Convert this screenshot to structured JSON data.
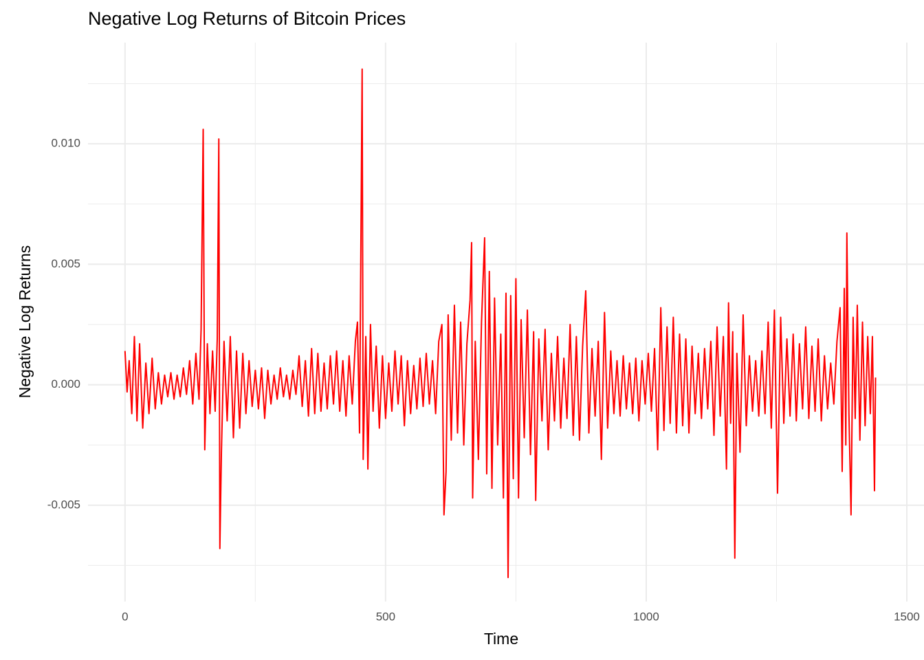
{
  "chart_data": {
    "type": "line",
    "title": "Negative Log Returns of Bitcoin Prices",
    "x_label": "Time",
    "y_label": "Negative Log Returns",
    "xlim": [
      -71,
      1533
    ],
    "ylim": [
      -0.009,
      0.0142
    ],
    "xticks": [
      0,
      500,
      1000,
      1500
    ],
    "xminorticks": [
      250,
      750,
      1250
    ],
    "yticks": [
      {
        "value": -0.005,
        "label": "-0.005"
      },
      {
        "value": 0,
        "label": "0.000"
      },
      {
        "value": 0.005,
        "label": "0.005"
      },
      {
        "value": 0.01,
        "label": "0.010"
      }
    ],
    "yminorticks": [
      -0.0075,
      -0.0025,
      0.0025,
      0.0075,
      0.0125
    ],
    "grid": true,
    "series": [
      {
        "name": "Negative Log Returns",
        "color": "#ff0000",
        "x": [
          0,
          4,
          8,
          13,
          18,
          23,
          28,
          34,
          40,
          46,
          52,
          58,
          64,
          70,
          76,
          82,
          88,
          94,
          100,
          106,
          112,
          118,
          124,
          130,
          136,
          142,
          146,
          150,
          153,
          158,
          163,
          168,
          173,
          177,
          180,
          182,
          185,
          190,
          196,
          202,
          208,
          214,
          220,
          226,
          232,
          238,
          244,
          250,
          256,
          262,
          268,
          274,
          280,
          286,
          292,
          298,
          304,
          310,
          316,
          322,
          328,
          334,
          340,
          346,
          352,
          358,
          364,
          370,
          376,
          382,
          388,
          394,
          400,
          406,
          412,
          418,
          424,
          430,
          436,
          442,
          446,
          450,
          455,
          457,
          462,
          466,
          471,
          476,
          482,
          488,
          494,
          500,
          506,
          512,
          518,
          524,
          530,
          536,
          542,
          548,
          554,
          560,
          566,
          572,
          578,
          584,
          590,
          596,
          602,
          608,
          612,
          616,
          620,
          626,
          632,
          638,
          644,
          650,
          656,
          662,
          665,
          667,
          672,
          678,
          684,
          690,
          694,
          699,
          704,
          709,
          715,
          721,
          726,
          731,
          735,
          740,
          745,
          750,
          755,
          760,
          766,
          772,
          778,
          784,
          788,
          794,
          800,
          806,
          812,
          818,
          824,
          830,
          836,
          842,
          848,
          854,
          860,
          866,
          872,
          878,
          884,
          890,
          896,
          902,
          908,
          914,
          920,
          926,
          932,
          938,
          944,
          950,
          956,
          962,
          968,
          974,
          980,
          986,
          992,
          998,
          1004,
          1010,
          1016,
          1022,
          1028,
          1034,
          1040,
          1046,
          1052,
          1058,
          1064,
          1070,
          1076,
          1082,
          1088,
          1094,
          1100,
          1106,
          1112,
          1118,
          1124,
          1130,
          1136,
          1142,
          1148,
          1154,
          1158,
          1162,
          1166,
          1170,
          1174,
          1180,
          1186,
          1192,
          1198,
          1204,
          1210,
          1216,
          1222,
          1228,
          1234,
          1240,
          1246,
          1252,
          1258,
          1264,
          1270,
          1276,
          1282,
          1288,
          1294,
          1300,
          1306,
          1312,
          1318,
          1324,
          1330,
          1336,
          1342,
          1348,
          1354,
          1360,
          1366,
          1372,
          1376,
          1380,
          1383,
          1385,
          1389,
          1393,
          1397,
          1401,
          1405,
          1410,
          1415,
          1420,
          1425,
          1430,
          1434,
          1438,
          1440
        ],
        "values": [
          0.0014,
          -0.0003,
          0.001,
          -0.0012,
          0.002,
          -0.0015,
          0.0017,
          -0.0018,
          0.0009,
          -0.0012,
          0.0011,
          -0.001,
          0.0005,
          -0.0008,
          0.0004,
          -0.0005,
          0.0005,
          -0.0006,
          0.0004,
          -0.0005,
          0.0007,
          -0.0004,
          0.001,
          -0.0008,
          0.0013,
          -0.0006,
          0.0023,
          0.0106,
          -0.0027,
          0.0017,
          -0.0012,
          0.0014,
          -0.0011,
          0.0019,
          0.0102,
          -0.0068,
          -0.0028,
          0.0018,
          -0.0015,
          0.002,
          -0.0022,
          0.0014,
          -0.0018,
          0.0013,
          -0.0012,
          0.001,
          -0.0009,
          0.0006,
          -0.001,
          0.0007,
          -0.0014,
          0.0006,
          -0.0008,
          0.0004,
          -0.0006,
          0.0007,
          -0.0005,
          0.0004,
          -0.0006,
          0.0006,
          -0.0004,
          0.0012,
          -0.0009,
          0.001,
          -0.0013,
          0.0015,
          -0.0012,
          0.0013,
          -0.0011,
          0.0009,
          -0.001,
          0.0012,
          -0.0008,
          0.0014,
          -0.0011,
          0.001,
          -0.0013,
          0.0012,
          -0.0008,
          0.0018,
          0.0026,
          -0.002,
          0.0131,
          -0.0031,
          0.002,
          -0.0035,
          0.0025,
          -0.0011,
          0.0016,
          -0.0018,
          0.0012,
          -0.0014,
          0.0009,
          -0.0011,
          0.0014,
          -0.0008,
          0.0012,
          -0.0017,
          0.001,
          -0.0012,
          0.0008,
          -0.001,
          0.0011,
          -0.0009,
          0.0013,
          -0.0008,
          0.001,
          -0.0012,
          0.0018,
          0.0025,
          -0.0054,
          -0.0036,
          0.0029,
          -0.0023,
          0.0033,
          -0.002,
          0.0026,
          -0.0025,
          0.0017,
          0.0035,
          0.0059,
          -0.0047,
          0.0018,
          -0.0031,
          0.0026,
          0.0061,
          -0.0037,
          0.0047,
          -0.0043,
          0.0036,
          -0.0025,
          0.0021,
          -0.0047,
          0.0038,
          -0.008,
          0.0037,
          -0.0039,
          0.0044,
          -0.0047,
          0.0027,
          -0.0022,
          0.0031,
          -0.0029,
          0.0022,
          -0.0048,
          0.0019,
          -0.0015,
          0.0023,
          -0.0027,
          0.0013,
          -0.0015,
          0.002,
          -0.0018,
          0.0011,
          -0.0014,
          0.0025,
          -0.0021,
          0.002,
          -0.0023,
          0.0016,
          0.0039,
          -0.002,
          0.0015,
          -0.0013,
          0.0018,
          -0.0031,
          0.003,
          -0.0018,
          0.0014,
          -0.0012,
          0.001,
          -0.0013,
          0.0012,
          -0.001,
          0.0009,
          -0.0012,
          0.0011,
          -0.0015,
          0.001,
          -0.0008,
          0.0013,
          -0.0011,
          0.0015,
          -0.0027,
          0.0032,
          -0.0019,
          0.0024,
          -0.0016,
          0.0028,
          -0.002,
          0.0021,
          -0.0017,
          0.0019,
          -0.002,
          0.0016,
          -0.0012,
          0.0013,
          -0.0014,
          0.0015,
          -0.001,
          0.0018,
          -0.0021,
          0.0024,
          -0.0013,
          0.002,
          -0.0035,
          0.0034,
          -0.0016,
          0.0022,
          -0.0072,
          0.0013,
          -0.0028,
          0.0029,
          -0.0017,
          0.0012,
          -0.0011,
          0.001,
          -0.0013,
          0.0014,
          -0.0012,
          0.0026,
          -0.0018,
          0.0031,
          -0.0045,
          0.0028,
          -0.0016,
          0.0019,
          -0.0013,
          0.0021,
          -0.0015,
          0.0017,
          -0.001,
          0.0024,
          -0.0014,
          0.0016,
          -0.0011,
          0.0019,
          -0.0015,
          0.0012,
          -0.001,
          0.0009,
          -0.0008,
          0.0018,
          0.0032,
          -0.0036,
          0.004,
          -0.0025,
          0.0063,
          -0.0012,
          -0.0054,
          0.0028,
          -0.0014,
          0.0033,
          -0.0023,
          0.0026,
          -0.0017,
          0.002,
          -0.0012,
          0.002,
          -0.0044,
          0.0003
        ]
      }
    ]
  }
}
